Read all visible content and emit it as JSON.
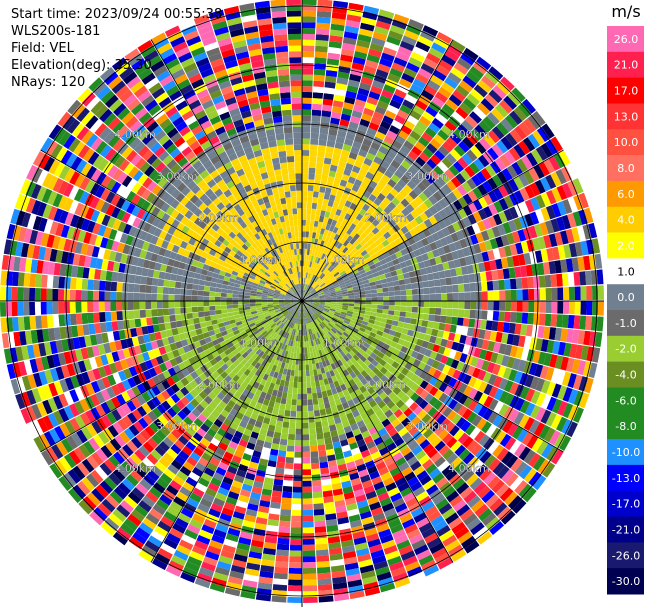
{
  "header": {
    "start_time": "Start time: 2023/09/24 00:55:38",
    "instrument": "WLS200s-181",
    "field": "Field: VEL",
    "elevation": "Elevation(deg): 35.30",
    "nrays": "NRays: 120"
  },
  "chart_data": {
    "type": "heatmap",
    "projection": "polar",
    "title": "",
    "ring_labels_km": [
      "1.00km",
      "2.00km",
      "3.00km",
      "4.00km"
    ],
    "rays": 120,
    "colorbar": {
      "title": "m/s",
      "ticks": [
        "26.0",
        "21.0",
        "17.0",
        "13.0",
        "10.0",
        "8.0",
        "6.0",
        "4.0",
        "2.0",
        "1.0",
        "0.0",
        "-1.0",
        "-2.0",
        "-4.0",
        "-6.0",
        "-8.0",
        "-10.0",
        "-13.0",
        "-17.0",
        "-21.0",
        "-26.0",
        "-30.0"
      ],
      "colors": [
        "#ff69b4",
        "#ff2050",
        "#ff0000",
        "#ff3333",
        "#ff5040",
        "#ff7060",
        "#ff9900",
        "#ffcc00",
        "#ffff00",
        "#ffffff",
        "#708090",
        "#6b6b6b",
        "#9acd32",
        "#6b8e23",
        "#228b22",
        "#228b22",
        "#1e90ff",
        "#0000ff",
        "#0000cd",
        "#00008b",
        "#191970",
        "#000050"
      ]
    },
    "palette": {
      "gray": "#708090",
      "dark_gray": "#696969",
      "yellow": "#ffd700",
      "light_green": "#9acd32",
      "olive": "#6b8e23",
      "green": "#228b22"
    }
  }
}
